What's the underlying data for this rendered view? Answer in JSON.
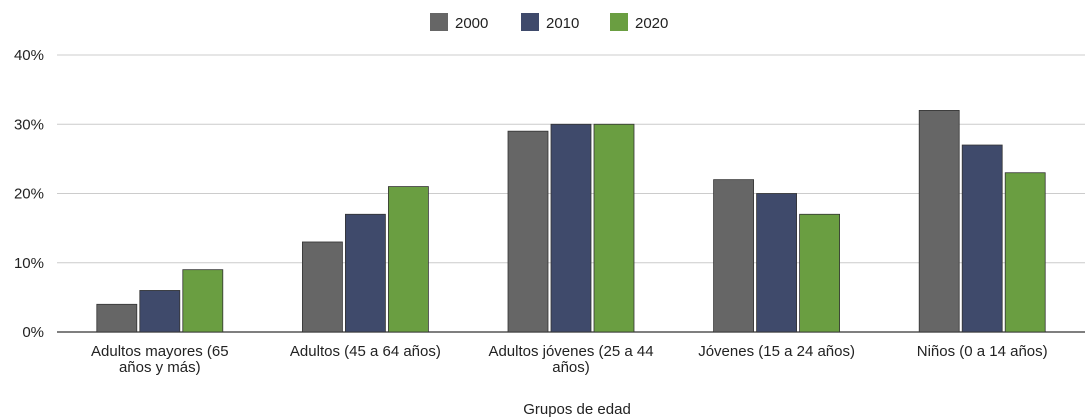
{
  "chart_data": {
    "type": "bar",
    "title": "",
    "xlabel": "Grupos de edad",
    "ylabel": "",
    "ylim": [
      0,
      40
    ],
    "yticks": [
      "0%",
      "10%",
      "20%",
      "30%",
      "40%"
    ],
    "grid": true,
    "legend_position": "top-center",
    "categories": [
      [
        "Adultos mayores (65",
        "años y más)"
      ],
      [
        "Adultos (45 a 64 años)"
      ],
      [
        "Adultos jóvenes (25 a 44",
        "años)"
      ],
      [
        "Jóvenes (15 a 24 años)"
      ],
      [
        "Niños (0 a 14 años)"
      ]
    ],
    "series": [
      {
        "name": "2000",
        "color": "#666666",
        "values": [
          4,
          13,
          29,
          22,
          32
        ]
      },
      {
        "name": "2010",
        "color": "#3f4a6b",
        "values": [
          6,
          17,
          30,
          20,
          27
        ]
      },
      {
        "name": "2020",
        "color": "#6a9e41",
        "values": [
          9,
          21,
          30,
          17,
          23
        ]
      }
    ]
  }
}
